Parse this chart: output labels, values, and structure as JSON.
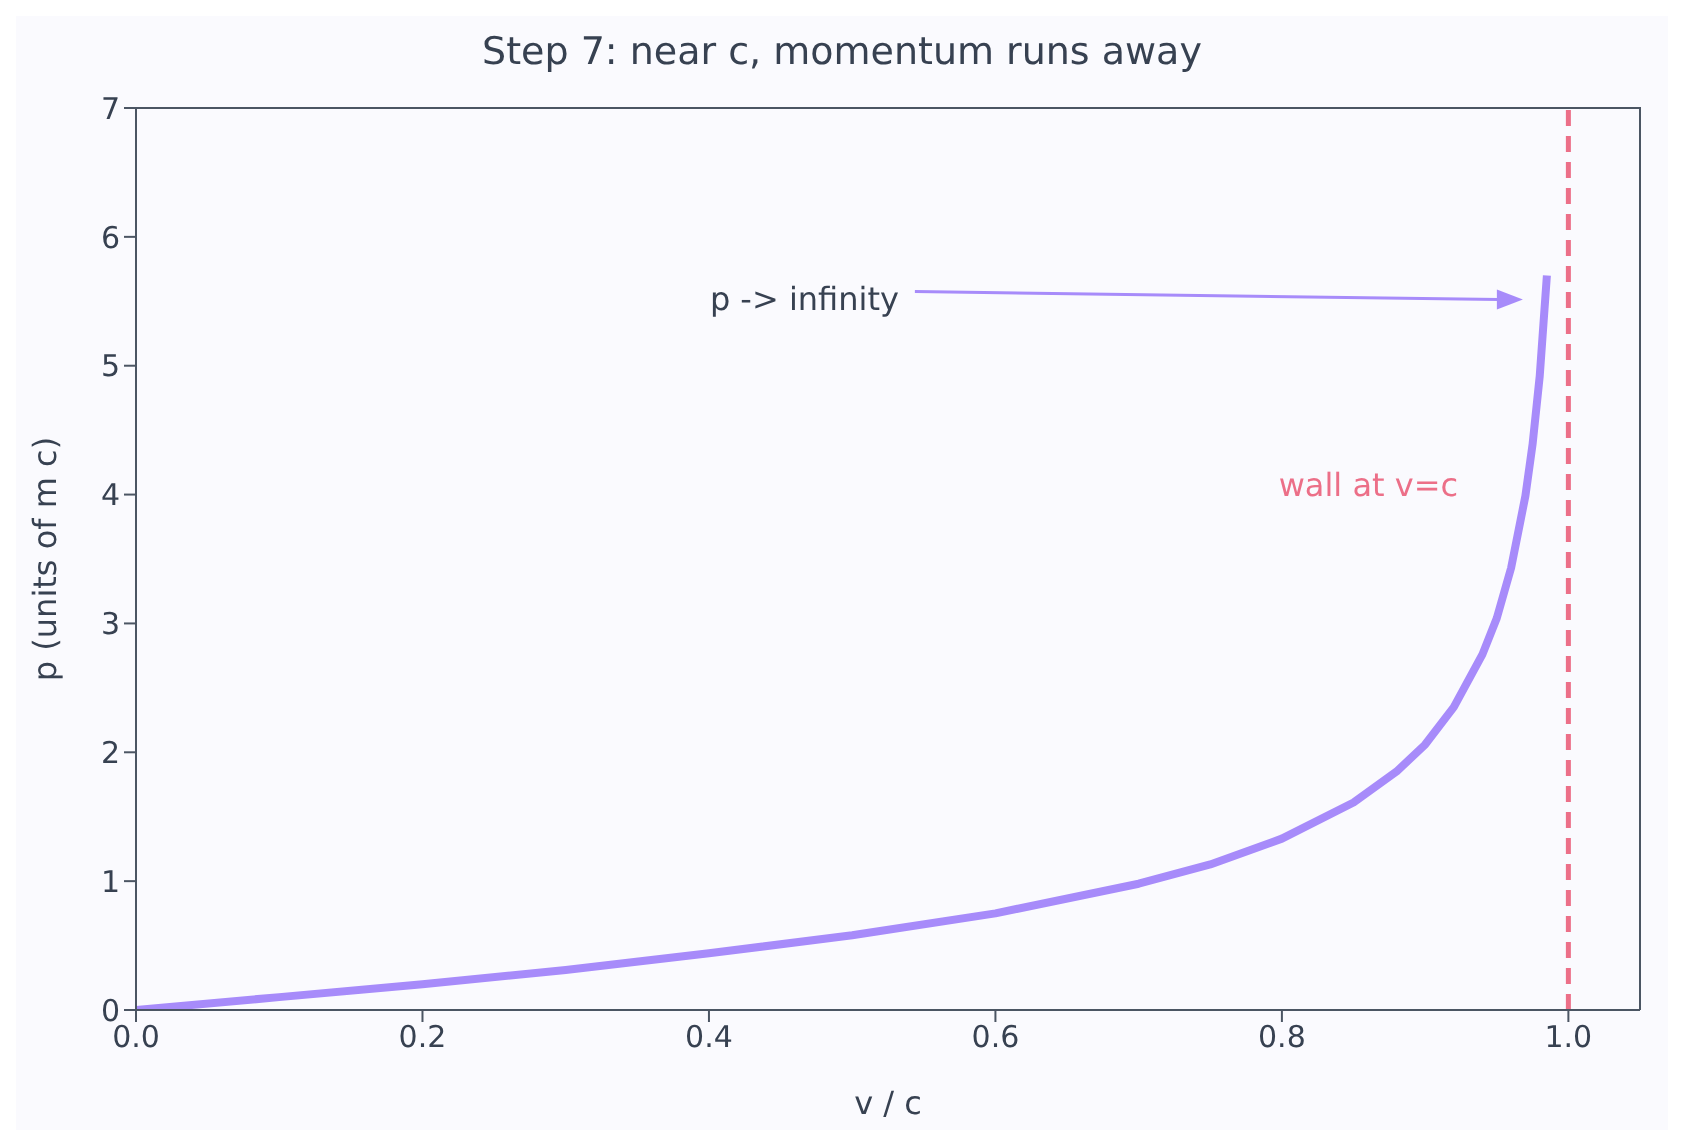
{
  "chart_data": {
    "type": "line",
    "title": "Step 7: near c, momentum runs away",
    "xlabel": "v / c",
    "ylabel": "p (units of m c)",
    "x": [
      0,
      0.1,
      0.2,
      0.3,
      0.4,
      0.5,
      0.6,
      0.7,
      0.75,
      0.8,
      0.85,
      0.88,
      0.9,
      0.92,
      0.94,
      0.95,
      0.96,
      0.97,
      0.975,
      0.98,
      0.985
    ],
    "series": [
      {
        "color": "#a78bfa",
        "values": [
          0,
          0.1,
          0.2,
          0.31,
          0.44,
          0.58,
          0.75,
          0.98,
          1.13,
          1.33,
          1.61,
          1.85,
          2.06,
          2.35,
          2.76,
          3.04,
          3.43,
          3.99,
          4.39,
          4.92,
          5.7
        ]
      }
    ],
    "xlim": [
      0,
      1.05
    ],
    "ylim": [
      0,
      7
    ],
    "xticks": [
      {
        "value": 0,
        "label": "0.0"
      },
      {
        "value": 0.2,
        "label": "0.2"
      },
      {
        "value": 0.4,
        "label": "0.4"
      },
      {
        "value": 0.6,
        "label": "0.6"
      },
      {
        "value": 0.8,
        "label": "0.8"
      },
      {
        "value": 1,
        "label": "1.0"
      }
    ],
    "yticks": [
      0,
      1,
      2,
      3,
      4,
      5,
      6,
      7
    ],
    "ref_lines": [
      {
        "axis": "x",
        "value": 1,
        "label": "wall at v=c",
        "color": "#ec6f88",
        "line_style": "dashed"
      }
    ],
    "annotations": [
      "p -> infinity"
    ],
    "grid": false,
    "legend": false,
    "marker": "none",
    "line_style": "solid"
  }
}
